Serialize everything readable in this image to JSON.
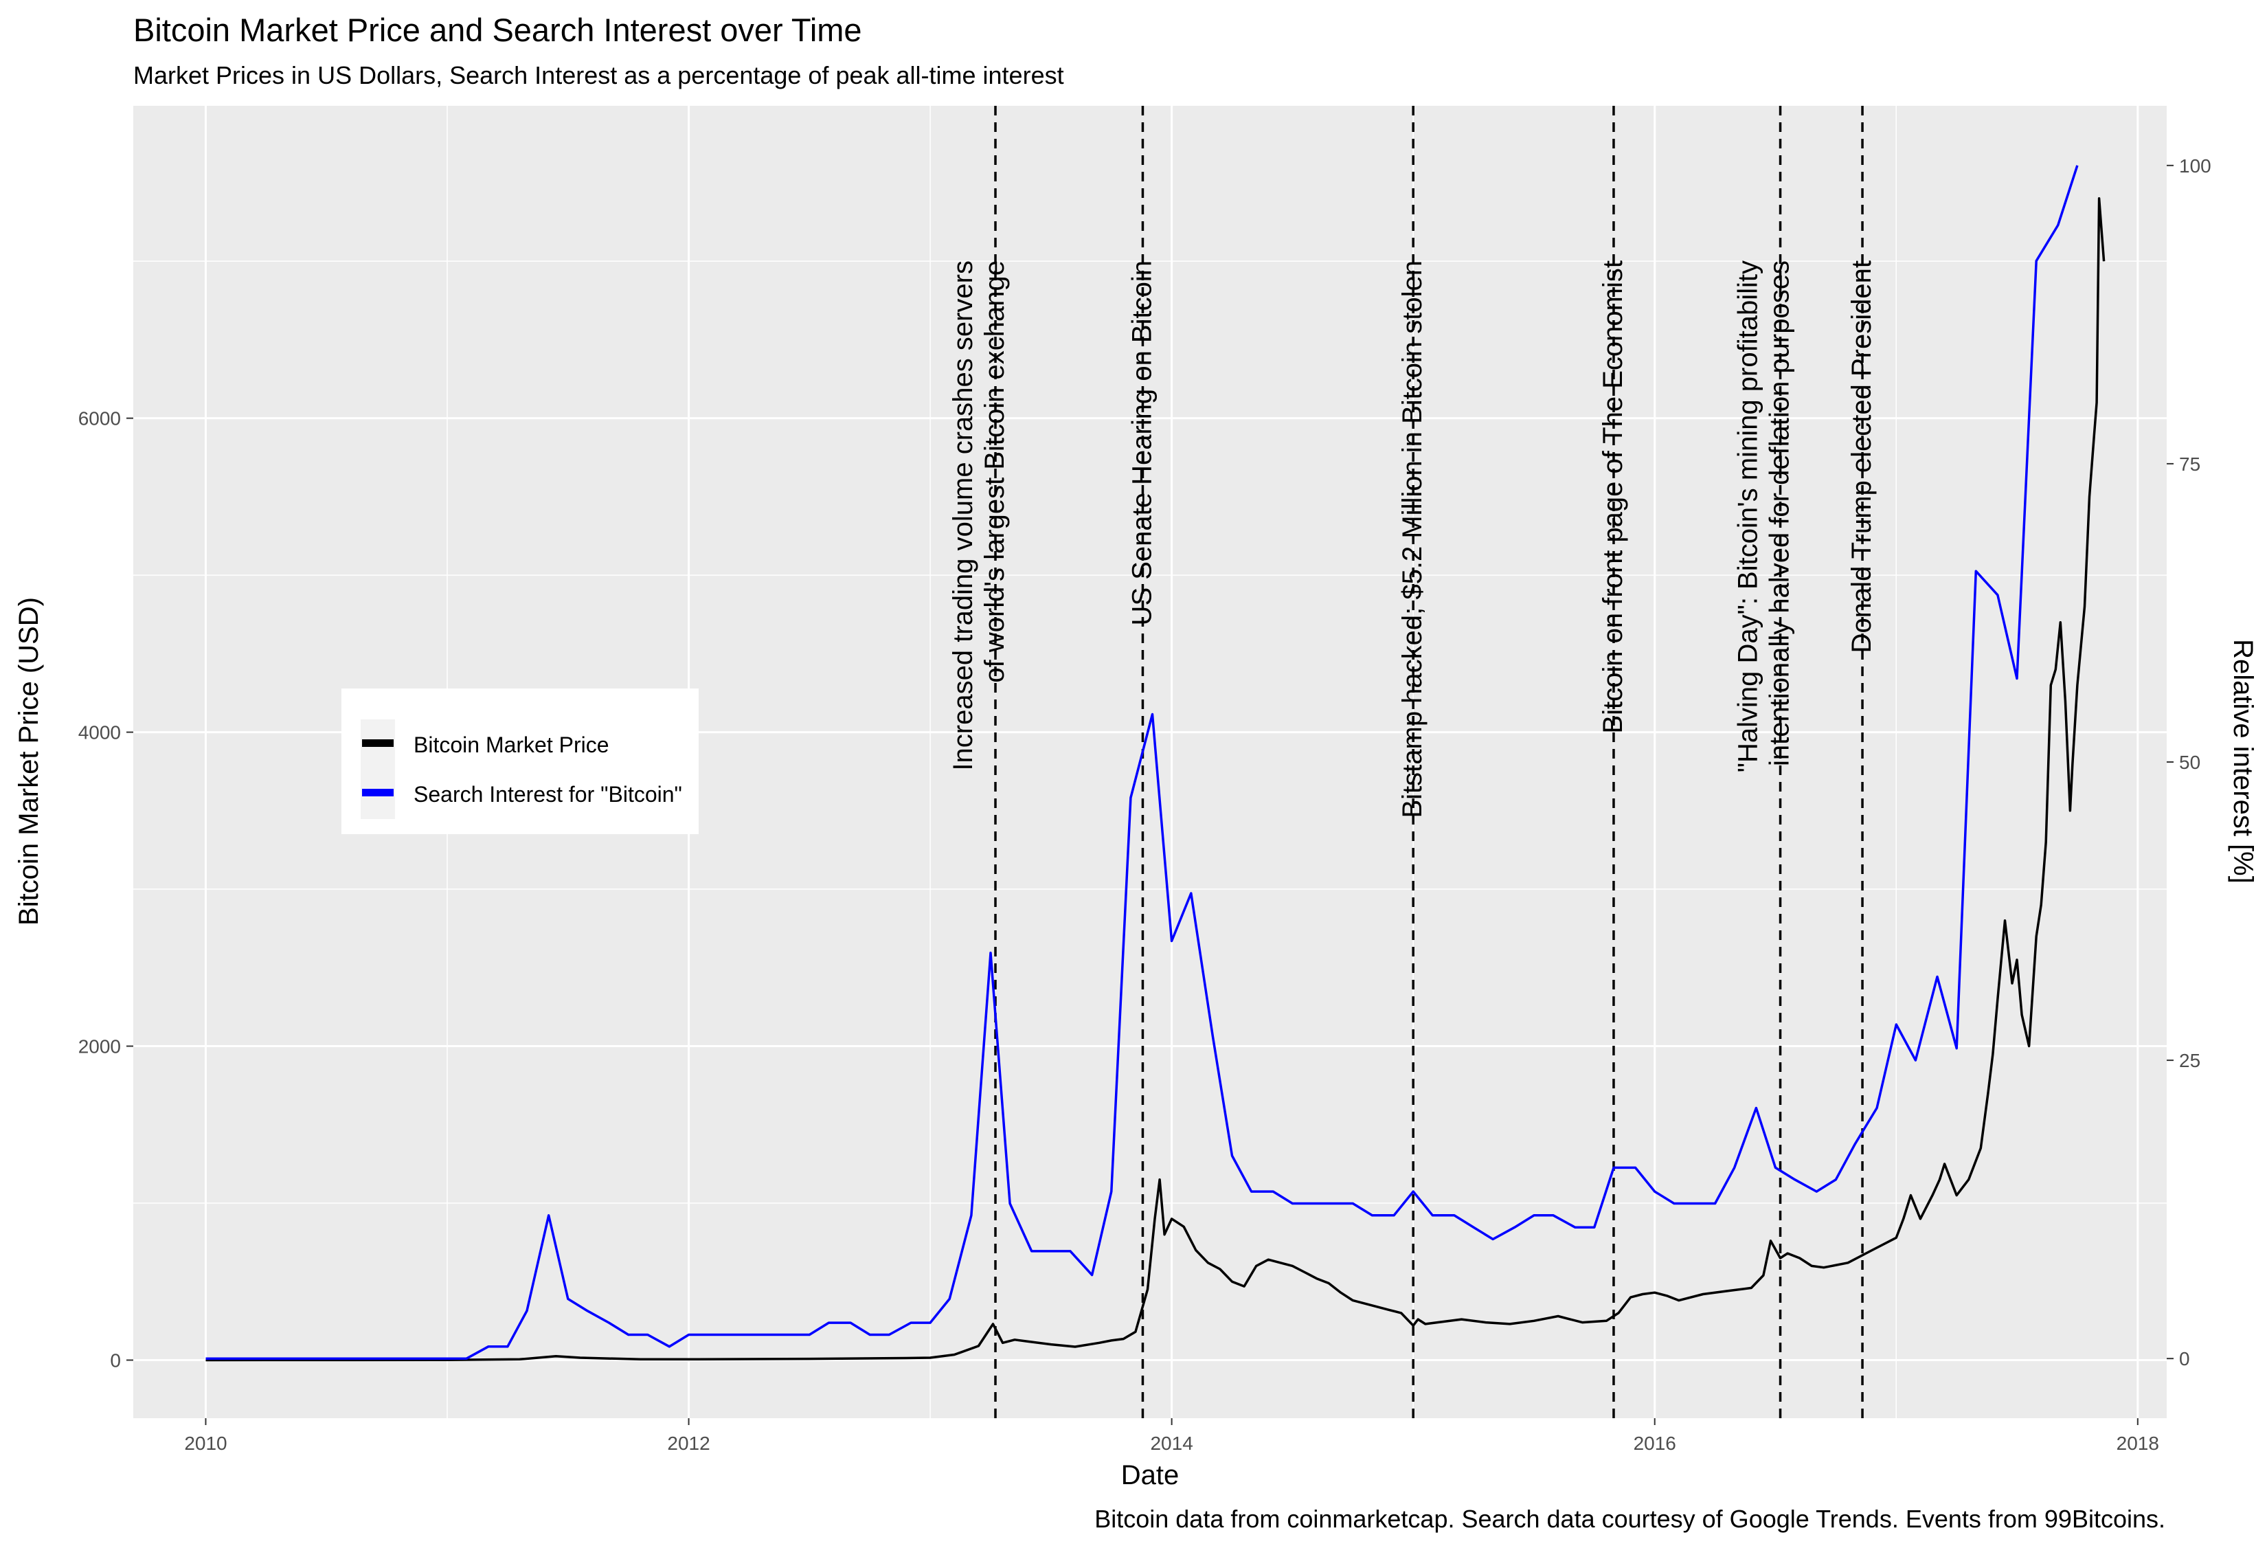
{
  "title": "Bitcoin Market Price and Search Interest over Time",
  "subtitle": "Market Prices in US Dollars, Search Interest as a percentage of peak all-time interest",
  "caption": "Bitcoin data from coinmarketcap. Search data courtesy of Google Trends. Events from 99Bitcoins.",
  "colors": {
    "panel": "#ebebeb",
    "grid": "#ffffff",
    "price": "#000000",
    "search": "#0000ff",
    "right_axis_title": "#0000ff"
  },
  "chart_data": {
    "type": "line",
    "title": "Bitcoin Market Price and Search Interest over Time",
    "subtitle": "Market Prices in US Dollars, Search Interest as a percentage of peak all-time interest",
    "xlabel": "Date",
    "ylabel": "Bitcoin Market Price (USD)",
    "y2label": "Relative interest [%]",
    "xlim": [
      2009.7,
      2018.12
    ],
    "ylim": [
      -370,
      7990
    ],
    "y2lim": [
      -5,
      105
    ],
    "x_ticks": [
      2010,
      2012,
      2014,
      2016,
      2018
    ],
    "x_tick_labels": [
      "2010",
      "2012",
      "2014",
      "2016",
      "2018"
    ],
    "y_ticks": [
      0,
      2000,
      4000,
      6000
    ],
    "y_tick_labels": [
      "0",
      "2000",
      "4000",
      "6000"
    ],
    "y2_ticks": [
      0,
      25,
      50,
      75,
      100
    ],
    "y2_tick_labels": [
      "0",
      "25",
      "50",
      "75",
      "100"
    ],
    "grid": true,
    "legend_position": "left-middle",
    "series": [
      {
        "name": "Bitcoin Market Price",
        "axis": "left",
        "color": "#000000",
        "x": [
          2010.0,
          2011.0,
          2011.3,
          2011.45,
          2011.55,
          2011.8,
          2012.0,
          2012.5,
          2012.9,
          2013.0,
          2013.1,
          2013.2,
          2013.26,
          2013.3,
          2013.35,
          2013.4,
          2013.5,
          2013.6,
          2013.7,
          2013.75,
          2013.8,
          2013.85,
          2013.9,
          2013.93,
          2013.95,
          2013.97,
          2014.0,
          2014.05,
          2014.1,
          2014.15,
          2014.2,
          2014.25,
          2014.3,
          2014.35,
          2014.4,
          2014.45,
          2014.5,
          2014.55,
          2014.6,
          2014.65,
          2014.7,
          2014.75,
          2014.8,
          2014.85,
          2014.9,
          2014.95,
          2015.0,
          2015.02,
          2015.05,
          2015.1,
          2015.2,
          2015.3,
          2015.4,
          2015.5,
          2015.6,
          2015.7,
          2015.8,
          2015.85,
          2015.9,
          2015.95,
          2016.0,
          2016.05,
          2016.1,
          2016.2,
          2016.3,
          2016.4,
          2016.45,
          2016.48,
          2016.52,
          2016.55,
          2016.6,
          2016.65,
          2016.7,
          2016.8,
          2016.9,
          2017.0,
          2017.03,
          2017.06,
          2017.1,
          2017.15,
          2017.18,
          2017.2,
          2017.25,
          2017.3,
          2017.35,
          2017.38,
          2017.4,
          2017.42,
          2017.45,
          2017.48,
          2017.5,
          2017.52,
          2017.55,
          2017.58,
          2017.6,
          2017.62,
          2017.64,
          2017.66,
          2017.68,
          2017.7,
          2017.72,
          2017.73,
          2017.75,
          2017.78,
          2017.8,
          2017.82,
          2017.83,
          2017.84,
          2017.86
        ],
        "y": [
          0,
          1,
          5,
          25,
          15,
          5,
          5,
          8,
          13,
          15,
          35,
          90,
          230,
          110,
          130,
          120,
          100,
          85,
          110,
          125,
          135,
          180,
          450,
          900,
          1150,
          800,
          900,
          850,
          700,
          620,
          580,
          500,
          470,
          600,
          640,
          620,
          600,
          560,
          520,
          490,
          430,
          380,
          360,
          340,
          320,
          300,
          220,
          260,
          230,
          240,
          260,
          240,
          230,
          250,
          280,
          240,
          250,
          300,
          400,
          420,
          430,
          410,
          380,
          420,
          440,
          460,
          540,
          760,
          650,
          680,
          650,
          600,
          590,
          620,
          700,
          780,
          900,
          1050,
          900,
          1050,
          1150,
          1250,
          1050,
          1150,
          1350,
          1700,
          1950,
          2300,
          2800,
          2400,
          2550,
          2200,
          2000,
          2700,
          2900,
          3300,
          4300,
          4400,
          4700,
          4200,
          3500,
          3800,
          4300,
          4800,
          5500,
          5900,
          6100,
          7400,
          7000
        ]
      },
      {
        "name": "Search Interest for \"Bitcoin\"",
        "axis": "right",
        "color": "#0000ff",
        "x": [
          2010.0,
          2011.08,
          2011.17,
          2011.25,
          2011.33,
          2011.42,
          2011.5,
          2011.58,
          2011.67,
          2011.75,
          2011.83,
          2011.92,
          2012.0,
          2012.08,
          2012.17,
          2012.25,
          2012.33,
          2012.42,
          2012.5,
          2012.58,
          2012.67,
          2012.75,
          2012.83,
          2012.92,
          2013.0,
          2013.08,
          2013.17,
          2013.25,
          2013.33,
          2013.42,
          2013.5,
          2013.58,
          2013.67,
          2013.75,
          2013.83,
          2013.92,
          2014.0,
          2014.08,
          2014.17,
          2014.25,
          2014.33,
          2014.42,
          2014.5,
          2014.58,
          2014.67,
          2014.75,
          2014.83,
          2014.92,
          2015.0,
          2015.08,
          2015.17,
          2015.25,
          2015.33,
          2015.42,
          2015.5,
          2015.58,
          2015.67,
          2015.75,
          2015.83,
          2015.92,
          2016.0,
          2016.08,
          2016.17,
          2016.25,
          2016.33,
          2016.42,
          2016.5,
          2016.58,
          2016.67,
          2016.75,
          2016.83,
          2016.92,
          2017.0,
          2017.08,
          2017.17,
          2017.25,
          2017.33,
          2017.42,
          2017.5,
          2017.58,
          2017.67,
          2017.75
        ],
        "y": [
          0,
          0,
          1,
          1,
          4,
          12,
          5,
          4,
          3,
          2,
          2,
          1,
          2,
          2,
          2,
          2,
          2,
          2,
          2,
          3,
          3,
          2,
          2,
          3,
          3,
          5,
          12,
          34,
          13,
          9,
          9,
          9,
          7,
          14,
          47,
          54,
          35,
          39,
          27,
          17,
          14,
          14,
          13,
          13,
          13,
          13,
          12,
          12,
          14,
          12,
          12,
          11,
          10,
          11,
          12,
          12,
          11,
          11,
          16,
          16,
          14,
          13,
          13,
          13,
          16,
          21,
          16,
          15,
          14,
          15,
          18,
          21,
          28,
          25,
          32,
          26,
          66,
          64,
          57,
          92,
          95,
          100
        ]
      }
    ],
    "events": [
      {
        "x": 2013.27,
        "label_lines": [
          "Increased trading volume crashes servers",
          "of world's largest Bitcoin exchange"
        ]
      },
      {
        "x": 2013.88,
        "label_lines": [
          "US Senate Hearing on Bitcoin"
        ]
      },
      {
        "x": 2015.0,
        "label_lines": [
          "Bitstamp hacked; $5.2 Million in Bitcoin stolen"
        ]
      },
      {
        "x": 2015.83,
        "label_lines": [
          "Bitcoin on front page of The Economist"
        ]
      },
      {
        "x": 2016.52,
        "label_lines": [
          "\"Halving Day\": Bitcoin's mining profitability",
          "intentionally halved for deflation purposes"
        ]
      },
      {
        "x": 2016.86,
        "label_lines": [
          "Donald Trump elected President"
        ]
      }
    ]
  },
  "legend": {
    "items": [
      {
        "label": "Bitcoin Market Price",
        "color": "#000000"
      },
      {
        "label": "Search Interest for \"Bitcoin\"",
        "color": "#0000ff"
      }
    ]
  }
}
